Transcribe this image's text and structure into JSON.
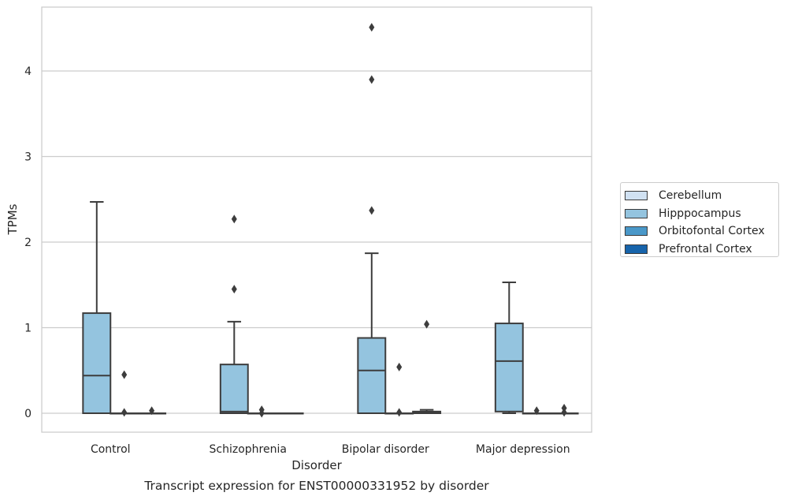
{
  "chart_data": {
    "type": "box",
    "title": "Transcript expression for ENST00000331952 by disorder",
    "xlabel": "Disorder",
    "ylabel": "TPMs",
    "categories": [
      "Control",
      "Schizophrenia",
      "Bipolar disorder",
      "Major depression"
    ],
    "ylim": [
      -0.22,
      4.75
    ],
    "yticks": [
      0,
      1,
      2,
      3,
      4
    ],
    "grid": true,
    "legend_position": "right",
    "series": [
      {
        "name": "Cerebellum",
        "color": "#d0e1f2",
        "boxes": [
          null,
          null,
          null,
          null
        ]
      },
      {
        "name": "Hipppocampus",
        "color": "#94c4df",
        "boxes": [
          {
            "category": "Control",
            "whislo": 0,
            "q1": 0,
            "med": 0.44,
            "q3": 1.17,
            "whishi": 2.47,
            "fliers": []
          },
          {
            "category": "Schizophrenia",
            "whislo": 0,
            "q1": 0,
            "med": 0.02,
            "q3": 0.57,
            "whishi": 1.07,
            "fliers": [
              1.45,
              2.27
            ]
          },
          {
            "category": "Bipolar disorder",
            "whislo": 0,
            "q1": 0,
            "med": 0.5,
            "q3": 0.88,
            "whishi": 1.87,
            "fliers": [
              2.37,
              3.9,
              4.51
            ]
          },
          {
            "category": "Major depression",
            "whislo": 0,
            "q1": 0.02,
            "med": 0.61,
            "q3": 1.05,
            "whishi": 1.53,
            "fliers": []
          }
        ]
      },
      {
        "name": "Orbitofontal Cortex",
        "color": "#4a98c9",
        "boxes": [
          {
            "category": "Control",
            "whislo": 0,
            "q1": 0,
            "med": 0,
            "q3": 0,
            "whishi": 0,
            "fliers": [
              0.01,
              0.45
            ]
          },
          {
            "category": "Schizophrenia",
            "whislo": 0,
            "q1": 0,
            "med": 0,
            "q3": 0,
            "whishi": 0,
            "fliers": [
              0.0,
              0.04
            ]
          },
          {
            "category": "Bipolar disorder",
            "whislo": 0,
            "q1": 0,
            "med": 0,
            "q3": 0,
            "whishi": 0,
            "fliers": [
              0.01,
              0.54
            ]
          },
          {
            "category": "Major depression",
            "whislo": 0,
            "q1": 0,
            "med": 0,
            "q3": 0,
            "whishi": 0,
            "fliers": [
              0.03
            ]
          }
        ]
      },
      {
        "name": "Prefrontal Cortex",
        "color": "#1764ab",
        "boxes": [
          {
            "category": "Control",
            "whislo": 0,
            "q1": 0,
            "med": 0,
            "q3": 0,
            "whishi": 0,
            "fliers": [
              0.03
            ]
          },
          {
            "category": "Schizophrenia",
            "whislo": 0,
            "q1": 0,
            "med": 0,
            "q3": 0,
            "whishi": 0,
            "fliers": []
          },
          {
            "category": "Bipolar disorder",
            "whislo": 0,
            "q1": 0,
            "med": 0.01,
            "q3": 0.02,
            "whishi": 0.04,
            "fliers": [
              1.04
            ]
          },
          {
            "category": "Major depression",
            "whislo": 0,
            "q1": 0,
            "med": 0,
            "q3": 0,
            "whishi": 0,
            "fliers": [
              0.01,
              0.06
            ]
          }
        ]
      }
    ]
  }
}
